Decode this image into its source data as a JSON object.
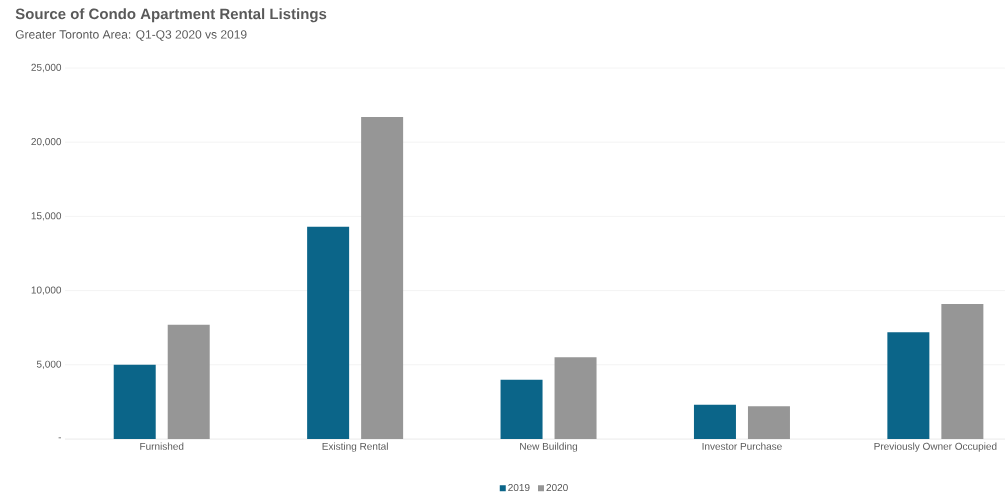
{
  "chart_data": {
    "type": "bar",
    "title": "Source of Condo Apartment Rental Listings",
    "subtitle": "Greater Toronto Area: Q1-Q3 2020 vs 2019",
    "categories": [
      "Furnished",
      "Existing Rental",
      "New Building",
      "Investor Purchase",
      "Previously Owner Occupied"
    ],
    "series": [
      {
        "name": "2019",
        "color": "#0b6589",
        "values": [
          5000,
          14300,
          4000,
          2300,
          7200
        ]
      },
      {
        "name": "2020",
        "color": "#969696",
        "values": [
          7700,
          21700,
          5500,
          2200,
          9100
        ]
      }
    ],
    "ylim": [
      0,
      25000
    ],
    "yticks": [
      {
        "value": 0,
        "label": "-"
      },
      {
        "value": 5000,
        "label": "5,000"
      },
      {
        "value": 10000,
        "label": "10,000"
      },
      {
        "value": 15000,
        "label": "15,000"
      },
      {
        "value": 20000,
        "label": "20,000"
      },
      {
        "value": 25000,
        "label": "25,000"
      }
    ],
    "grid": "y",
    "legend": "bottom"
  }
}
